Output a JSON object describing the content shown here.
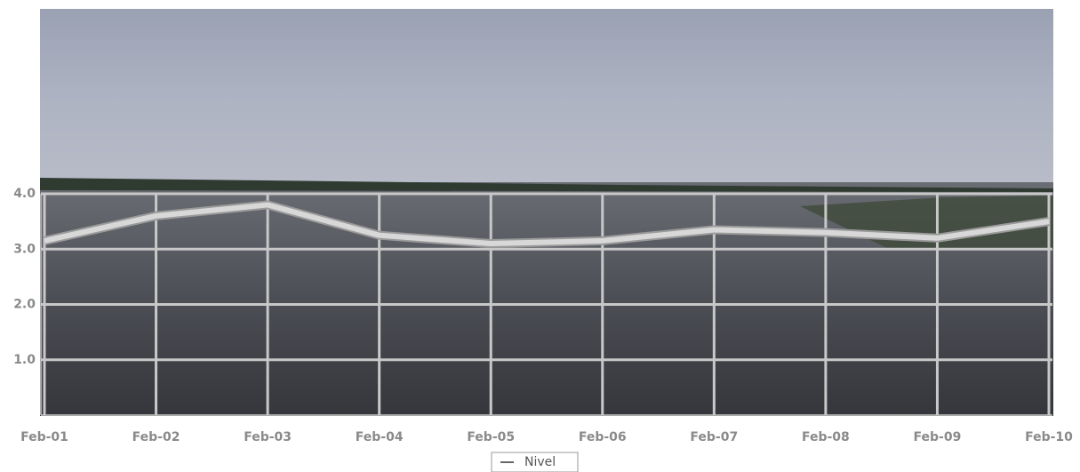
{
  "chart_data": {
    "type": "line",
    "categories": [
      "Feb-01",
      "Feb-02",
      "Feb-03",
      "Feb-04",
      "Feb-05",
      "Feb-06",
      "Feb-07",
      "Feb-08",
      "Feb-09",
      "Feb-10"
    ],
    "series": [
      {
        "name": "Nivel",
        "color": "#d8d8d8",
        "values": [
          3.15,
          3.6,
          3.8,
          3.25,
          3.1,
          3.15,
          3.35,
          3.3,
          3.2,
          3.5
        ]
      }
    ],
    "ylim": [
      0,
      4
    ],
    "yticks": [
      {
        "value": 1,
        "label": "1.0"
      },
      {
        "value": 2,
        "label": "2.0"
      },
      {
        "value": 3,
        "label": "3.0"
      },
      {
        "value": 4,
        "label": "4.0"
      }
    ],
    "grid": true,
    "legend": "bottom"
  }
}
